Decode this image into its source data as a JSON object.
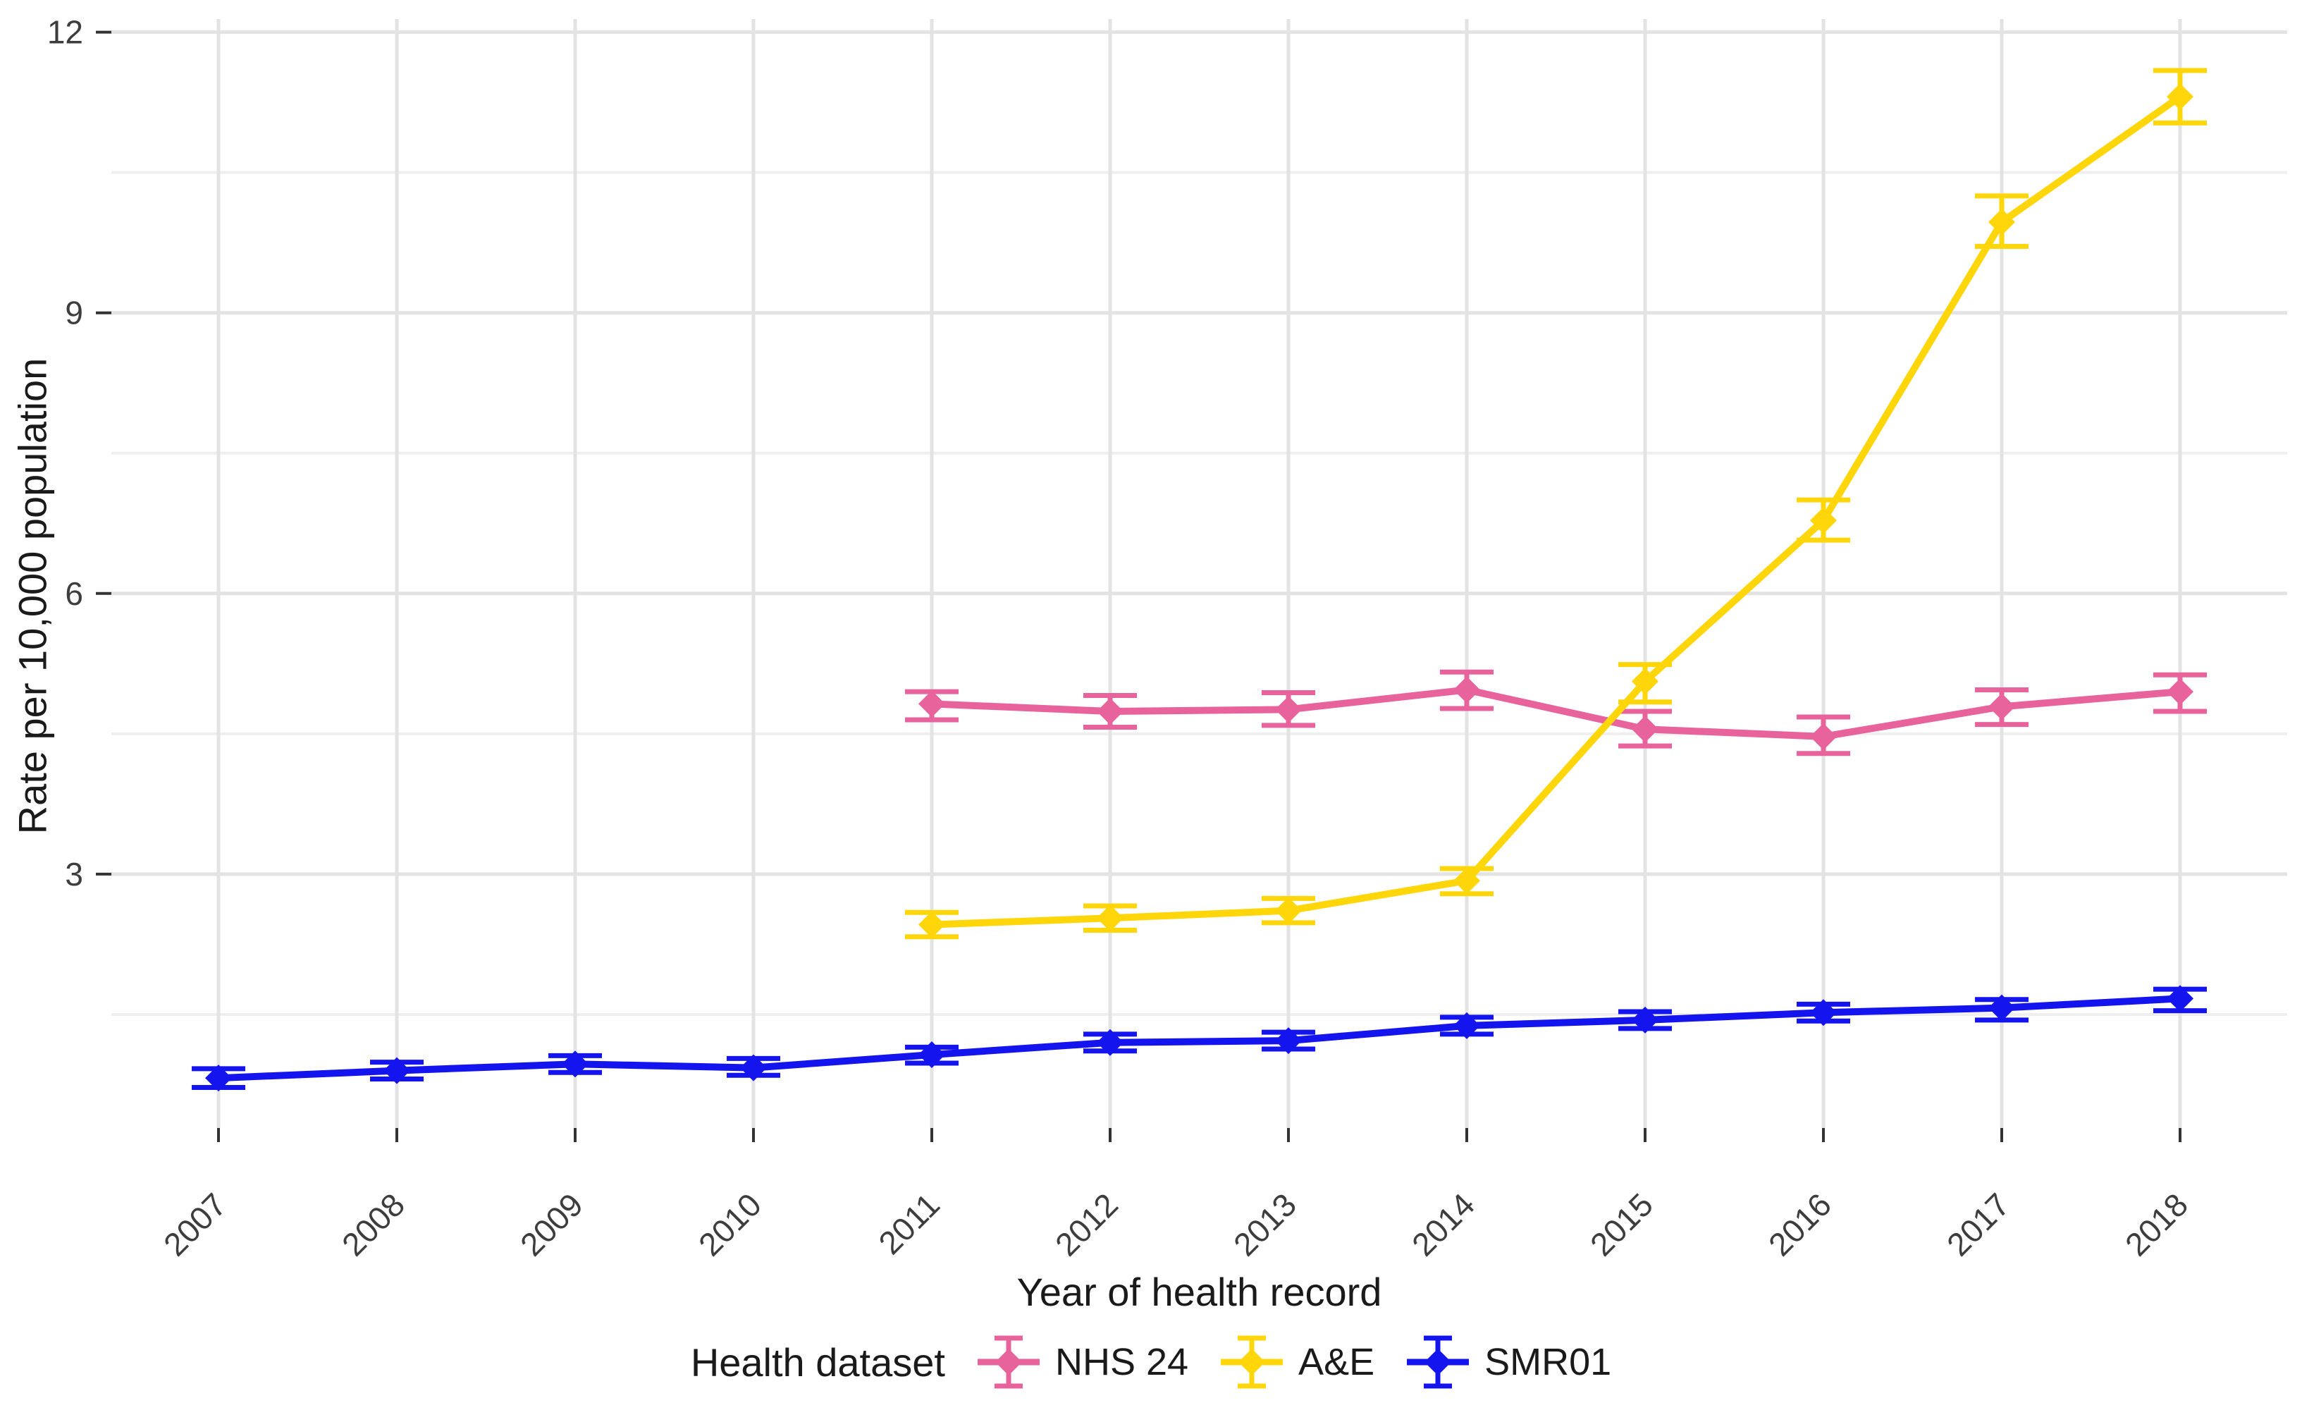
{
  "figure": {
    "xlabel": "Year of health record",
    "ylabel": "Rate per 10,000 population",
    "legend_title": "Health dataset"
  },
  "chart_data": {
    "type": "line",
    "title": "",
    "xlabel": "Year of health record",
    "ylabel": "Rate per 10,000 population",
    "x_categories": [
      "2007",
      "2008",
      "2009",
      "2010",
      "2011",
      "2012",
      "2013",
      "2014",
      "2015",
      "2016",
      "2017",
      "2018"
    ],
    "y_ticks": [
      3,
      6,
      9,
      12
    ],
    "y_minor_ticks": [
      1.5,
      4.5,
      7.5,
      10.5
    ],
    "ylim": [
      0.3,
      12.15
    ],
    "grid": {
      "background": "#ffffff",
      "major_color": "#e3e3e3",
      "minor_color": "#efefef"
    },
    "axis_text_color": "#3d3d3d",
    "tick_color": "#333333",
    "legend": {
      "title": "Health dataset",
      "position": "bottom"
    },
    "marker": "diamond",
    "error_bars": true,
    "series": [
      {
        "name": "NHS 24",
        "color": "#E8639C",
        "x": [
          "2011",
          "2012",
          "2013",
          "2014",
          "2015",
          "2016",
          "2017",
          "2018"
        ],
        "y": [
          4.82,
          4.74,
          4.76,
          4.97,
          4.55,
          4.47,
          4.79,
          4.95
        ],
        "lo": [
          4.65,
          4.57,
          4.59,
          4.77,
          4.37,
          4.29,
          4.6,
          4.74
        ],
        "hi": [
          4.95,
          4.91,
          4.94,
          5.16,
          4.74,
          4.68,
          4.97,
          5.13
        ]
      },
      {
        "name": "A&E",
        "color": "#FFD60A",
        "x": [
          "2011",
          "2012",
          "2013",
          "2014",
          "2015",
          "2016",
          "2017",
          "2018"
        ],
        "y": [
          2.46,
          2.53,
          2.61,
          2.93,
          5.06,
          6.78,
          9.97,
          11.31
        ],
        "lo": [
          2.33,
          2.4,
          2.48,
          2.79,
          4.84,
          6.57,
          9.71,
          11.03
        ],
        "hi": [
          2.59,
          2.66,
          2.74,
          3.06,
          5.24,
          7.0,
          10.25,
          11.59
        ]
      },
      {
        "name": "SMR01",
        "color": "#1414EE",
        "x": [
          "2007",
          "2008",
          "2009",
          "2010",
          "2011",
          "2012",
          "2013",
          "2014",
          "2015",
          "2016",
          "2017",
          "2018"
        ],
        "y": [
          0.82,
          0.9,
          0.97,
          0.93,
          1.07,
          1.2,
          1.22,
          1.38,
          1.44,
          1.52,
          1.57,
          1.67
        ],
        "lo": [
          0.72,
          0.81,
          0.88,
          0.85,
          0.98,
          1.11,
          1.13,
          1.29,
          1.35,
          1.43,
          1.44,
          1.54
        ],
        "hi": [
          0.92,
          0.99,
          1.06,
          1.03,
          1.15,
          1.29,
          1.31,
          1.47,
          1.53,
          1.61,
          1.66,
          1.77
        ]
      }
    ]
  }
}
